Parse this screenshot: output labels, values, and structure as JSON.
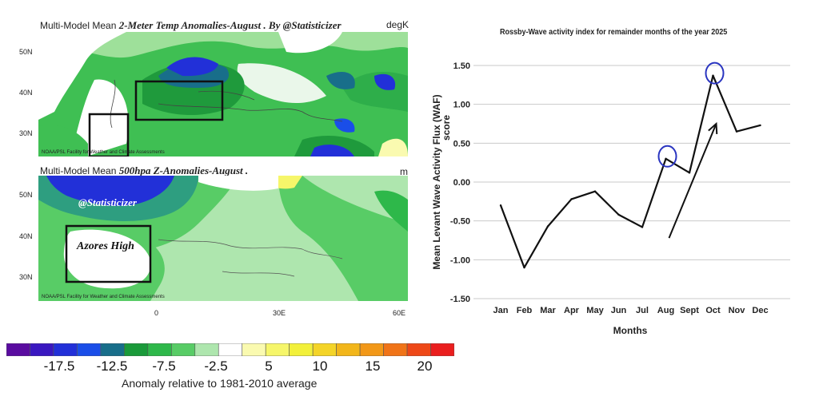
{
  "top_map": {
    "title_prefix": "Multi-Model Mean",
    "title_italic": "2-Meter Temp Anomalies-August . By @Statisticizer",
    "unit": "degK",
    "lat_labels": [
      "50N",
      "40N",
      "30N"
    ],
    "credit": "NOAA/PSL Facility for Weather and Climate Assessments"
  },
  "bottom_map": {
    "title_prefix": "Multi-Model Mean",
    "title_italic": "500hpa Z-Anomalies-August .",
    "unit": "m",
    "lat_labels": [
      "50N",
      "40N",
      "30N"
    ],
    "lon_labels": [
      "0",
      "30E",
      "60E"
    ],
    "watermark": "@Statisticizer",
    "annotation": "Azores High",
    "credit": "NOAA/PSL Facility for Weather and Climate Assessments"
  },
  "colorbar": {
    "colors": [
      "#5a0ca0",
      "#3a18c0",
      "#2230d8",
      "#1a4ee8",
      "#186e8a",
      "#1a9a3a",
      "#2eb84a",
      "#58cc66",
      "#aee6ae",
      "#ffffff",
      "#fafab0",
      "#f6f66a",
      "#f2f03a",
      "#f4d428",
      "#f2b61a",
      "#f29818",
      "#f07418",
      "#ee4818",
      "#ea1e1e"
    ],
    "tick_labels": [
      "-17.5",
      "-12.5",
      "-7.5",
      "-2.5",
      "5",
      "10",
      "15",
      "20"
    ],
    "caption": "Anomaly relative to 1981-2010 average"
  },
  "chart_data": {
    "type": "line",
    "title": "Rossby-Wave activity index for remainder months of the year 2025",
    "xlabel": "Months",
    "ylabel_line1": "Mean Levant Wave Activity Flux (WAF)",
    "ylabel_line2": "score",
    "categories": [
      "Jan",
      "Feb",
      "Mar",
      "Apr",
      "May",
      "Jun",
      "Jul",
      "Aug",
      "Sept",
      "Oct",
      "Nov",
      "Dec"
    ],
    "values": [
      -0.3,
      -1.1,
      -0.57,
      -0.22,
      -0.12,
      -0.42,
      -0.58,
      0.3,
      0.12,
      1.37,
      0.65,
      0.73
    ],
    "ylim": [
      -1.5,
      1.5
    ],
    "ytick_labels": [
      "1.50",
      "1.00",
      "0.50",
      "0.00",
      "-0.50",
      "-1.00",
      "-1.50"
    ],
    "grid": true,
    "line_color": "#111111",
    "highlight_color": "#2a35c0",
    "highlighted": [
      "Aug",
      "Oct"
    ],
    "trend_arrow": {
      "from": {
        "x": "Aug",
        "y": -0.72
      },
      "to": {
        "x": "Oct",
        "y": 0.75
      }
    }
  }
}
